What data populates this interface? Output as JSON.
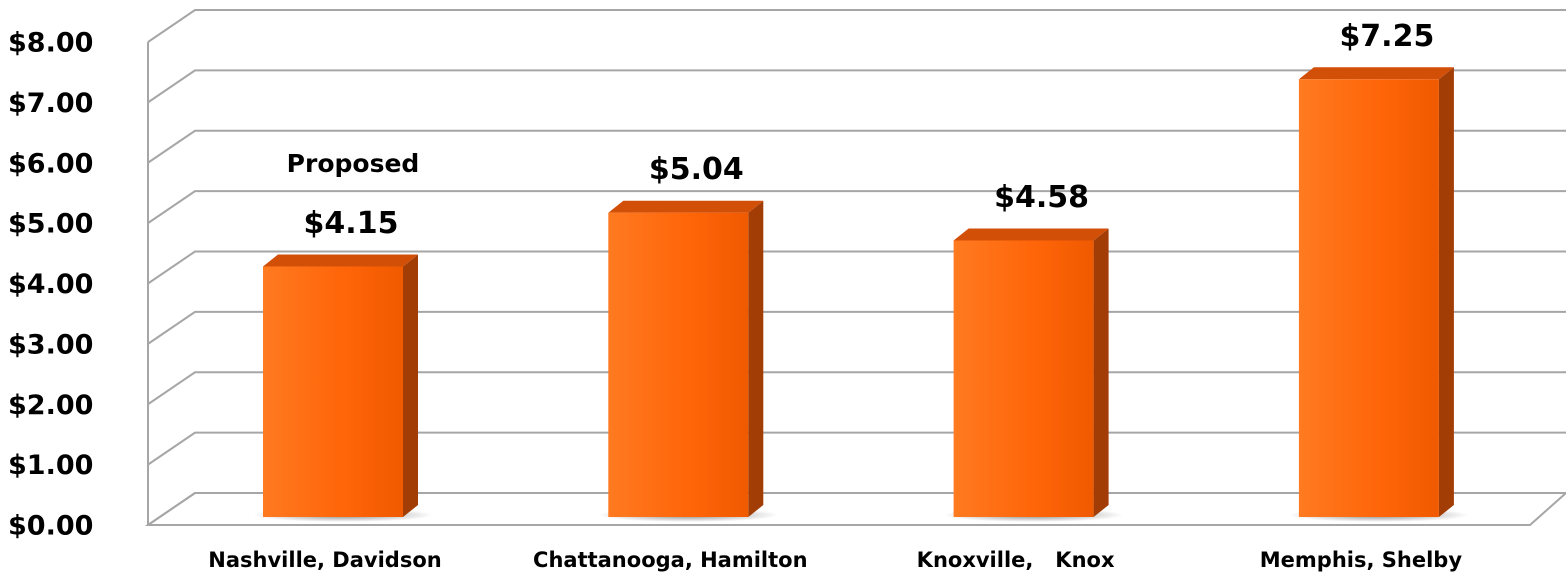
{
  "chart_data": {
    "type": "bar3d",
    "categories": [
      "Nashville, Davidson",
      "Chattanooga, Hamilton",
      "Knoxville,   Knox",
      "Memphis, Shelby"
    ],
    "values": [
      4.15,
      5.04,
      4.58,
      7.25
    ],
    "value_labels": [
      "$4.15",
      "$5.04",
      "$4.58",
      "$7.25"
    ],
    "color": "#ff6a10",
    "annotations": [
      "Proposed"
    ],
    "ylim": [
      0,
      8
    ],
    "yticks": [
      {
        "value": 0,
        "label": "$0.00"
      },
      {
        "value": 1,
        "label": "$1.00"
      },
      {
        "value": 2,
        "label": "$2.00"
      },
      {
        "value": 3,
        "label": "$3.00"
      },
      {
        "value": 4,
        "label": "$4.00"
      },
      {
        "value": 5,
        "label": "$5.00"
      },
      {
        "value": 6,
        "label": "$6.00"
      },
      {
        "value": 7,
        "label": "$7.00"
      },
      {
        "value": 8,
        "label": "$8.00"
      }
    ],
    "grid": true
  }
}
